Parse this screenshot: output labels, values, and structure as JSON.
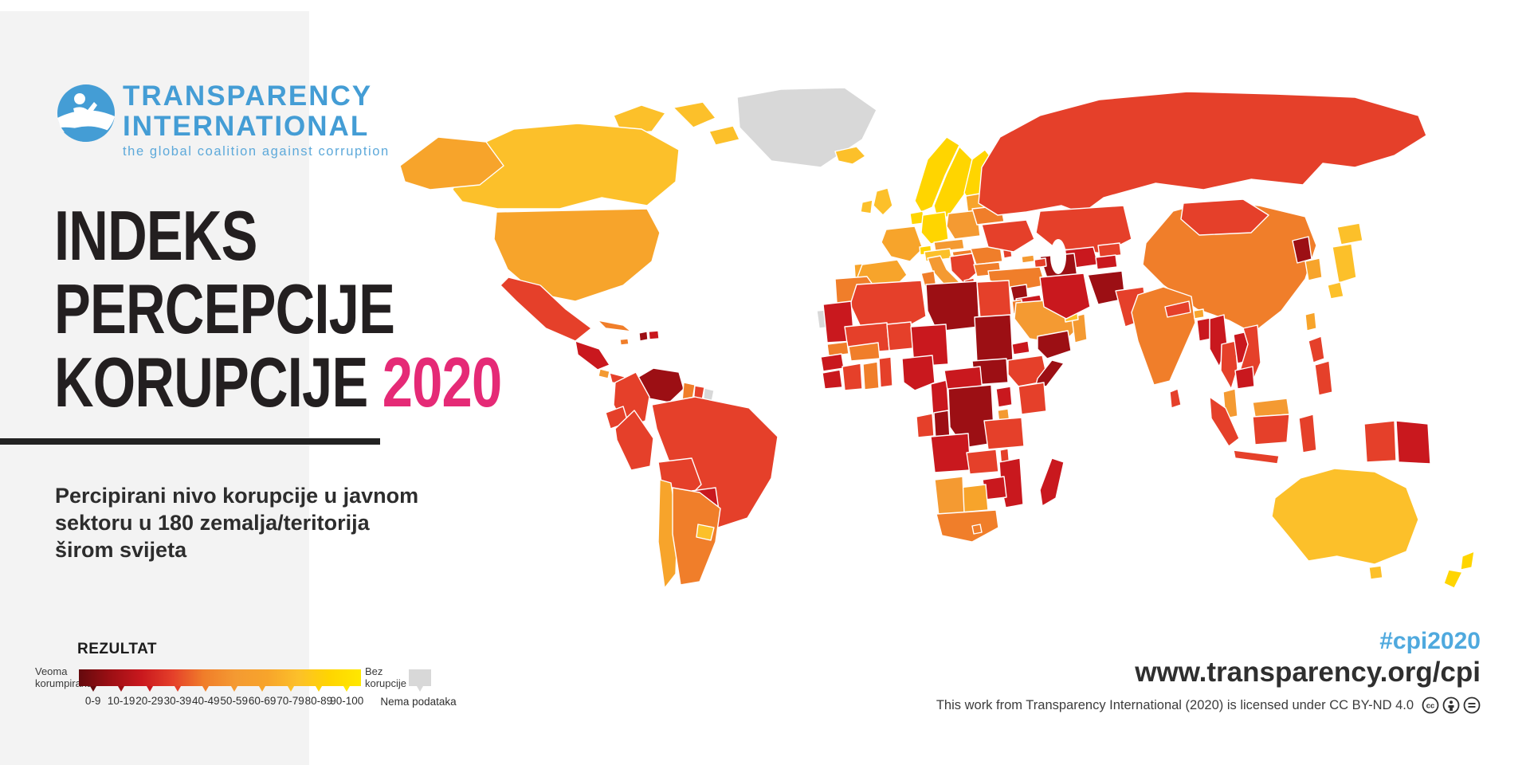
{
  "logo": {
    "name1": "TRANSPARENCY",
    "name2": "INTERNATIONAL",
    "tagline": "the global coalition against corruption",
    "color": "#449dd5"
  },
  "title": {
    "lines": [
      "INDEKS",
      "PERCEPCIJE",
      "KORUPCIJE"
    ],
    "year": "2020",
    "year_color": "#e52a76"
  },
  "subtitle": {
    "lines": [
      "Percipirani nivo korupcije u javnom",
      "sektoru u 180 zemalja/teritorija",
      "širom svijeta"
    ]
  },
  "legend": {
    "heading": "REZULTAT",
    "left_label_lines": [
      "Veoma",
      "korumpirana"
    ],
    "right_label_lines": [
      "Bez",
      "korupcije"
    ],
    "no_data_label": "Nema podataka"
  },
  "footer": {
    "hashtag": "#cpi2020",
    "url": "www.transparency.org/cpi",
    "license": "This work from Transparency International (2020) is licensed under CC BY-ND 4.0",
    "cc_icons": [
      "cc-icon",
      "cc-by-icon",
      "cc-nd-icon"
    ]
  },
  "chart_data": {
    "type": "choropleth",
    "title": "Indeks percepcije korupcije 2020",
    "subtitle": "Percipirani nivo korupcije u javnom sektoru u 180 zemalja/teritorija širom svijeta",
    "scale_ranges": [
      "0-9",
      "10-19",
      "20-29",
      "30-39",
      "40-49",
      "50-59",
      "60-69",
      "70-79",
      "80-89",
      "90-100"
    ],
    "range_colors": {
      "0-9": "#640a0d",
      "10-19": "#9c0f14",
      "20-29": "#c9181e",
      "30-39": "#e5402a",
      "40-49": "#f07e2a",
      "50-59": "#f49a32",
      "60-69": "#f7a42b",
      "70-79": "#fcc02a",
      "80-89": "#ffd500",
      "90-100": "#ffe800"
    },
    "no_data": {
      "label": "Nema podataka",
      "color": "#d8d8d8"
    },
    "scale_min_label": "Veoma korumpirana",
    "scale_max_label": "Bez korupcije",
    "legend_position": "bottom-left",
    "regions": {
      "greenland": "no-data",
      "canada": "70-79",
      "usa": "60-69",
      "mexico": "30-39",
      "central-america-north": "20-29",
      "costa-rica": "50-59",
      "panama": "30-39",
      "cuba": "40-49",
      "haiti": "10-19",
      "dominican-republic": "20-29",
      "jamaica": "40-49",
      "venezuela": "10-19",
      "colombia": "30-39",
      "guyana": "40-49",
      "suriname": "30-39",
      "french-guiana": "no-data",
      "ecuador": "30-39",
      "peru": "30-39",
      "brazil": "30-39",
      "bolivia": "30-39",
      "paraguay": "20-29",
      "chile": "60-69",
      "argentina": "40-49",
      "uruguay": "70-79",
      "iceland": "70-79",
      "norway": "80-89",
      "sweden": "80-89",
      "finland": "80-89",
      "denmark": "80-89",
      "baltics": "60-69",
      "uk": "70-79",
      "ireland": "70-79",
      "benelux": "80-89",
      "germany": "80-89",
      "poland": "50-59",
      "france": "60-69",
      "switzerland": "80-89",
      "czech-slovakia": "50-59",
      "austria": "70-79",
      "hungary": "40-49",
      "spain": "60-69",
      "portugal": "60-69",
      "italy": "50-59",
      "balkans-west": "30-39",
      "albania": "30-39",
      "greece": "50-59",
      "romania": "40-49",
      "bulgaria": "40-49",
      "moldova": "30-39",
      "ukraine": "30-39",
      "belarus": "40-49",
      "russia": "30-39",
      "kazakhstan": "30-39",
      "uzbekistan": "20-29",
      "turkmenistan": "10-19",
      "kyrgyzstan": "30-39",
      "tajikistan": "20-29",
      "georgia": "50-59",
      "azerbaijan": "30-39",
      "turkey": "40-49",
      "syria": "10-19",
      "iraq": "20-29",
      "israel": "60-69",
      "jordan": "40-49",
      "saudi-arabia": "50-59",
      "yemen": "10-19",
      "oman": "50-59",
      "uae": "70-79",
      "kuwait": "40-49",
      "iran": "20-29",
      "afghanistan": "10-19",
      "pakistan": "30-39",
      "india": "40-49",
      "nepal": "30-39",
      "bhutan": "60-69",
      "bangladesh": "20-29",
      "sri-lanka": "30-39",
      "myanmar": "20-29",
      "thailand": "30-39",
      "laos": "20-29",
      "vietnam": "30-39",
      "cambodia": "20-29",
      "malaysia": "50-59",
      "indonesia": "30-39",
      "philippines": "30-39",
      "taiwan": "60-69",
      "china": "40-49",
      "mongolia": "30-39",
      "north-korea": "10-19",
      "south-korea": "60-69",
      "japan": "70-79",
      "papua-new-guinea": "20-29",
      "australia": "70-79",
      "new-zealand": "80-89",
      "morocco": "40-49",
      "western-sahara": "no-data",
      "algeria": "30-39",
      "tunisia": "40-49",
      "libya": "10-19",
      "egypt": "30-39",
      "mauritania": "20-29",
      "mali": "30-39",
      "niger": "30-39",
      "chad": "20-29",
      "sudan": "10-19",
      "eritrea": "20-29",
      "ethiopia": "30-39",
      "somalia": "10-19",
      "south-sudan": "10-19",
      "senegal": "40-49",
      "guinea": "20-29",
      "liberia": "20-29",
      "ivory-coast": "30-39",
      "ghana": "40-49",
      "burkina-faso": "40-49",
      "togo-benin": "30-39",
      "nigeria": "20-29",
      "cameroon": "20-29",
      "central-african-republic": "20-29",
      "gabon": "30-39",
      "congo": "10-19",
      "drc": "10-19",
      "uganda": "20-29",
      "kenya": "30-39",
      "rwanda": "50-59",
      "tanzania": "30-39",
      "angola": "20-29",
      "zambia": "30-39",
      "malawi": "30-39",
      "mozambique": "20-29",
      "zimbabwe": "20-29",
      "botswana": "60-69",
      "namibia": "50-59",
      "south-africa": "40-49",
      "lesotho": "40-49",
      "madagascar": "20-29"
    }
  }
}
